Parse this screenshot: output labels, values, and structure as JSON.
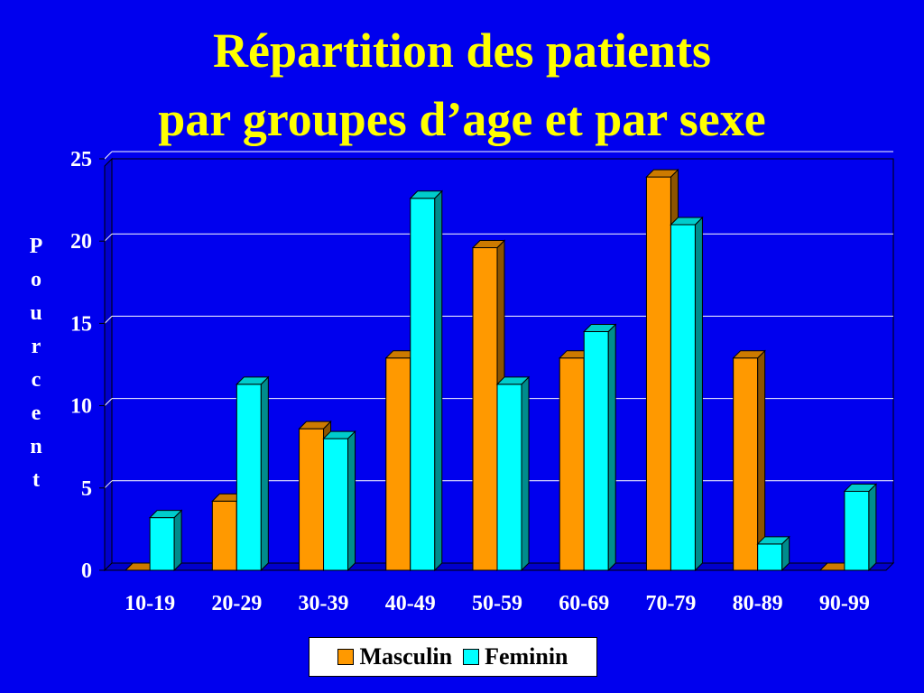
{
  "chart_data": {
    "type": "bar",
    "title_line1": "Répartition des patients",
    "title_line2": "par groupes d’age et par sexe",
    "ylabel": "Pourcent",
    "xlabel": "",
    "categories": [
      "10-19",
      "20-29",
      "30-39",
      "40-49",
      "50-59",
      "60-69",
      "70-79",
      "80-89",
      "90-99"
    ],
    "series": [
      {
        "name": "Masculin",
        "color": "#ff9900",
        "values": [
          0,
          4.2,
          8.6,
          12.9,
          19.6,
          12.9,
          23.9,
          12.9,
          0
        ]
      },
      {
        "name": "Feminin",
        "color": "#00ffff",
        "values": [
          3.2,
          11.3,
          8.0,
          22.6,
          11.3,
          14.5,
          21.0,
          1.6,
          4.8
        ]
      }
    ],
    "ylim": [
      0,
      25
    ],
    "yticks": [
      0,
      5,
      10,
      15,
      20,
      25
    ],
    "grid": true,
    "legend_position": "bottom"
  }
}
